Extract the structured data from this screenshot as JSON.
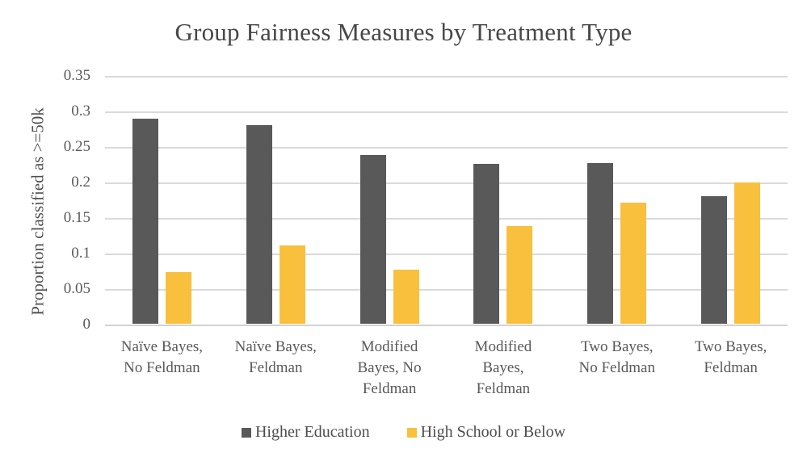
{
  "title": "Group Fairness Measures by Treatment Type",
  "y_axis_title": "Proportion classified as >=50k",
  "colors": {
    "series_higher_education": "#595959",
    "series_high_school_or_below": "#F8C03C",
    "gridline": "#DADADA",
    "axis_text": "#595959",
    "title_text": "#474747",
    "background": "#FFFFFF"
  },
  "legend": {
    "position": "bottom",
    "items": [
      {
        "label": "Higher Education",
        "color": "#595959"
      },
      {
        "label": "High School or Below",
        "color": "#F8C03C"
      }
    ]
  },
  "chart_data": {
    "type": "bar",
    "title": "Group Fairness Measures by Treatment Type",
    "xlabel": "",
    "ylabel": "Proportion classified as >=50k",
    "ylim": [
      0,
      0.35
    ],
    "ytick_step": 0.05,
    "ytick_labels": [
      "0",
      "0.05",
      "0.1",
      "0.15",
      "0.2",
      "0.25",
      "0.3",
      "0.35"
    ],
    "grid": true,
    "legend_position": "bottom",
    "categories": [
      "Naïve Bayes, No Feldman",
      "Naïve Bayes, Feldman",
      "Modified Bayes, No Feldman",
      "Modified Bayes, Feldman",
      "Two Bayes, No Feldman",
      "Two Bayes, Feldman"
    ],
    "categories_wrapped": [
      [
        "Naïve Bayes,",
        "No Feldman"
      ],
      [
        "Naïve Bayes,",
        "Feldman"
      ],
      [
        "Modified",
        "Bayes, No",
        "Feldman"
      ],
      [
        "Modified",
        "Bayes,",
        "Feldman"
      ],
      [
        "Two Bayes,",
        "No Feldman"
      ],
      [
        "Two Bayes,",
        "Feldman"
      ]
    ],
    "series": [
      {
        "name": "Higher Education",
        "color": "#595959",
        "values": [
          0.289,
          0.28,
          0.238,
          0.225,
          0.226,
          0.18
        ]
      },
      {
        "name": "High School or Below",
        "color": "#F8C03C",
        "values": [
          0.073,
          0.11,
          0.076,
          0.137,
          0.17,
          0.199
        ]
      }
    ]
  }
}
